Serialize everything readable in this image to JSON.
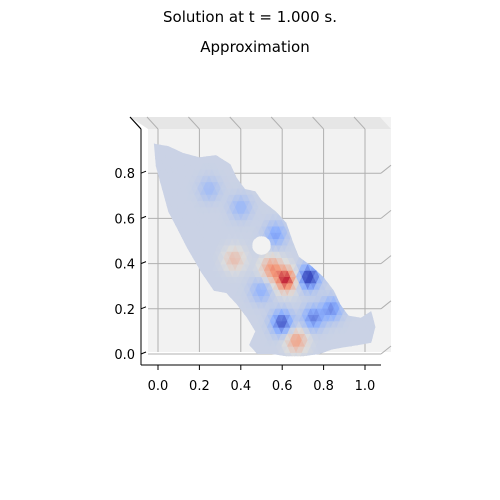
{
  "figure": {
    "suptitle": "Solution at t = 1.000 s.",
    "title": "Approximation"
  },
  "chart_data": {
    "type": "surface3d",
    "title": "Approximation",
    "suptitle": "Solution at t = 1.000 s.",
    "view": "top-down (elevation 90°)",
    "colormap": "coolwarm",
    "xlabel": "",
    "ylabel": "",
    "xlim": [
      -0.05,
      1.08
    ],
    "ylim": [
      -0.05,
      0.95
    ],
    "x_ticks": [
      0.0,
      0.2,
      0.4,
      0.6,
      0.8,
      1.0
    ],
    "x_tick_labels": [
      "0.0",
      "0.2",
      "0.4",
      "0.6",
      "0.8",
      "1.0"
    ],
    "y_ticks": [
      0.0,
      0.2,
      0.4,
      0.6,
      0.8
    ],
    "y_tick_labels": [
      "0.0",
      "0.2",
      "0.4",
      "0.6",
      "0.8"
    ],
    "grid": true,
    "domain_outline": [
      [
        -0.02,
        0.93
      ],
      [
        0.05,
        0.92
      ],
      [
        0.12,
        0.89
      ],
      [
        0.2,
        0.87
      ],
      [
        0.28,
        0.88
      ],
      [
        0.35,
        0.84
      ],
      [
        0.38,
        0.78
      ],
      [
        0.42,
        0.73
      ],
      [
        0.47,
        0.72
      ],
      [
        0.5,
        0.68
      ],
      [
        0.57,
        0.63
      ],
      [
        0.62,
        0.58
      ],
      [
        0.65,
        0.5
      ],
      [
        0.68,
        0.43
      ],
      [
        0.74,
        0.39
      ],
      [
        0.8,
        0.34
      ],
      [
        0.85,
        0.28
      ],
      [
        0.88,
        0.22
      ],
      [
        0.92,
        0.17
      ],
      [
        0.98,
        0.16
      ],
      [
        1.03,
        0.19
      ],
      [
        1.05,
        0.12
      ],
      [
        1.03,
        0.05
      ],
      [
        0.97,
        0.04
      ],
      [
        0.9,
        0.03
      ],
      [
        0.84,
        0.02
      ],
      [
        0.78,
        0.0
      ],
      [
        0.7,
        -0.01
      ],
      [
        0.62,
        -0.01
      ],
      [
        0.55,
        0.0
      ],
      [
        0.48,
        0.0
      ],
      [
        0.44,
        0.04
      ],
      [
        0.47,
        0.1
      ],
      [
        0.43,
        0.16
      ],
      [
        0.38,
        0.22
      ],
      [
        0.33,
        0.27
      ],
      [
        0.27,
        0.28
      ],
      [
        0.21,
        0.36
      ],
      [
        0.14,
        0.47
      ],
      [
        0.09,
        0.56
      ],
      [
        0.05,
        0.63
      ],
      [
        0.02,
        0.73
      ],
      [
        -0.01,
        0.83
      ]
    ],
    "hole": {
      "center": [
        0.5,
        0.48
      ],
      "radius": 0.045
    },
    "field_peaks": [
      {
        "x": 0.62,
        "y": 0.33,
        "value": 1.0
      },
      {
        "x": 0.55,
        "y": 0.38,
        "value": 0.6
      },
      {
        "x": 0.37,
        "y": 0.42,
        "value": 0.35
      },
      {
        "x": 0.67,
        "y": 0.06,
        "value": 0.55
      },
      {
        "x": 0.73,
        "y": 0.34,
        "value": -1.0
      },
      {
        "x": 0.6,
        "y": 0.14,
        "value": -0.8
      },
      {
        "x": 0.75,
        "y": 0.16,
        "value": -0.6
      },
      {
        "x": 0.84,
        "y": 0.2,
        "value": -0.55
      },
      {
        "x": 0.57,
        "y": 0.53,
        "value": -0.45
      },
      {
        "x": 0.4,
        "y": 0.65,
        "value": -0.3
      },
      {
        "x": 0.25,
        "y": 0.73,
        "value": -0.25
      },
      {
        "x": 0.5,
        "y": 0.28,
        "value": -0.35
      }
    ],
    "value_range": [
      -1.0,
      1.0
    ]
  }
}
